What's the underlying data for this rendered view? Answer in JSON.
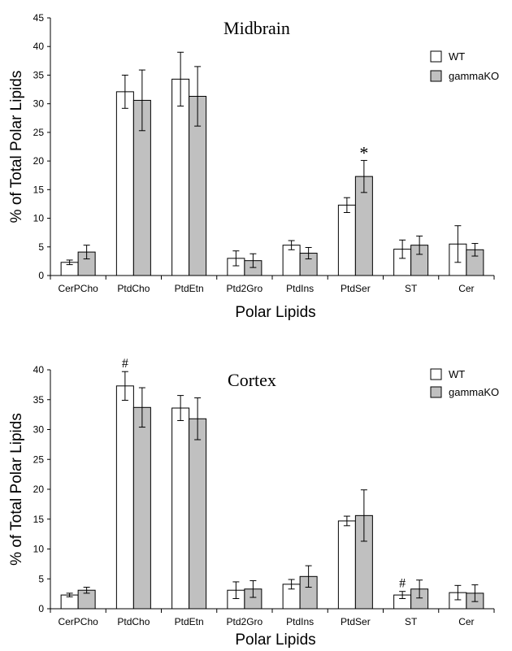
{
  "chart_data": [
    {
      "type": "bar",
      "title": "Midbrain",
      "xlabel": "Polar Lipids",
      "ylabel": "% of Total Polar Lipids",
      "ylim": [
        0,
        45
      ],
      "yticks": [
        0,
        5,
        10,
        15,
        20,
        25,
        30,
        35,
        40,
        45
      ],
      "categories": [
        "CerPCho",
        "PtdCho",
        "PtdEtn",
        "Ptd2Gro",
        "PtdIns",
        "PtdSer",
        "ST",
        "Cer"
      ],
      "series": [
        {
          "name": "WT",
          "color": "#ffffff",
          "values": [
            2.3,
            32.1,
            34.3,
            3.0,
            5.3,
            12.3,
            4.6,
            5.5
          ],
          "errors": [
            0.4,
            2.9,
            4.7,
            1.3,
            0.8,
            1.3,
            1.6,
            3.2
          ]
        },
        {
          "name": "gammaKO",
          "color": "#c0c0c0",
          "values": [
            4.1,
            30.6,
            31.3,
            2.6,
            3.9,
            17.3,
            5.3,
            4.5
          ],
          "errors": [
            1.2,
            5.3,
            5.2,
            1.2,
            1.0,
            2.8,
            1.6,
            1.1
          ]
        }
      ],
      "annotations": [
        {
          "text": "*",
          "category": "PtdSer",
          "series": "gammaKO"
        }
      ],
      "legend_position": "top-right",
      "grid": false
    },
    {
      "type": "bar",
      "title": "Cortex",
      "xlabel": "Polar Lipids",
      "ylabel": "% of Total Polar Lipids",
      "ylim": [
        0,
        40
      ],
      "yticks": [
        0,
        5,
        10,
        15,
        20,
        25,
        30,
        35,
        40
      ],
      "categories": [
        "CerPCho",
        "PtdCho",
        "PtdEtn",
        "Ptd2Gro",
        "PtdIns",
        "PtdSer",
        "ST",
        "Cer"
      ],
      "series": [
        {
          "name": "WT",
          "color": "#ffffff",
          "values": [
            2.3,
            37.3,
            33.6,
            3.1,
            4.1,
            14.7,
            2.3,
            2.7
          ],
          "errors": [
            0.3,
            2.4,
            2.1,
            1.4,
            0.8,
            0.8,
            0.6,
            1.2
          ]
        },
        {
          "name": "gammaKO",
          "color": "#c0c0c0",
          "values": [
            3.1,
            33.7,
            31.8,
            3.3,
            5.4,
            15.6,
            3.3,
            2.6
          ],
          "errors": [
            0.5,
            3.3,
            3.5,
            1.4,
            1.8,
            4.3,
            1.5,
            1.4
          ]
        }
      ],
      "annotations": [
        {
          "text": "#",
          "category": "PtdCho",
          "series": "WT"
        },
        {
          "text": "#",
          "category": "ST",
          "series": "WT"
        }
      ],
      "legend_position": "top-right",
      "grid": false
    }
  ]
}
